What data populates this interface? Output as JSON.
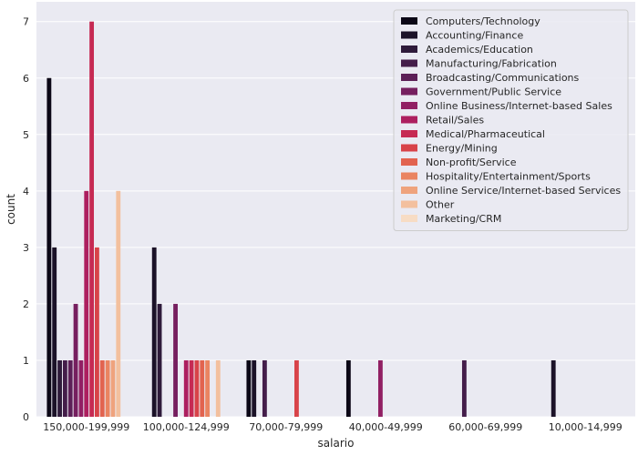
{
  "chart_data": {
    "type": "bar",
    "title": "",
    "xlabel": "salario",
    "ylabel": "count",
    "categories": [
      "150,000-199,999",
      "100,000-124,999",
      "70,000-79,999",
      "40,000-49,999",
      "60,000-69,999",
      "10,000-14,999"
    ],
    "ylim": [
      0,
      7.35
    ],
    "yticks": [
      0,
      1,
      2,
      3,
      4,
      5,
      6,
      7
    ],
    "grid": "horizontal",
    "legend_position": "top-right",
    "series": [
      {
        "name": "Computers/Technology",
        "color": "#0b0716",
        "values": [
          6,
          0,
          1,
          1,
          0,
          0
        ]
      },
      {
        "name": "Accounting/Finance",
        "color": "#1b1228",
        "values": [
          3,
          3,
          1,
          0,
          0,
          1
        ]
      },
      {
        "name": "Academics/Education",
        "color": "#2e1a3a",
        "values": [
          1,
          2,
          0,
          0,
          0,
          0
        ]
      },
      {
        "name": "Manufacturing/Fabrication",
        "color": "#441d4a",
        "values": [
          1,
          0,
          1,
          0,
          1,
          0
        ]
      },
      {
        "name": "Broadcasting/Communications",
        "color": "#5c1f57",
        "values": [
          1,
          0,
          0,
          0,
          0,
          0
        ]
      },
      {
        "name": "Government/Public Service",
        "color": "#761f5f",
        "values": [
          2,
          2,
          0,
          0,
          0,
          0
        ]
      },
      {
        "name": "Online Business/Internet-based Sales",
        "color": "#911f63",
        "values": [
          1,
          0,
          0,
          1,
          0,
          0
        ]
      },
      {
        "name": "Retail/Sales",
        "color": "#ad1f5f",
        "values": [
          4,
          1,
          0,
          0,
          0,
          0
        ]
      },
      {
        "name": "Medical/Pharmaceutical",
        "color": "#c62a53",
        "values": [
          7,
          1,
          0,
          0,
          0,
          0
        ]
      },
      {
        "name": "Energy/Mining",
        "color": "#d84349",
        "values": [
          3,
          1,
          1,
          0,
          0,
          0
        ]
      },
      {
        "name": "Non-profit/Service",
        "color": "#e2634f",
        "values": [
          1,
          1,
          0,
          0,
          0,
          0
        ]
      },
      {
        "name": "Hospitality/Entertainment/Sports",
        "color": "#ea8461",
        "values": [
          1,
          1,
          0,
          0,
          0,
          0
        ]
      },
      {
        "name": "Online Service/Internet-based Services",
        "color": "#efa37d",
        "values": [
          1,
          0,
          0,
          0,
          0,
          0
        ]
      },
      {
        "name": "Other",
        "color": "#f3c09e",
        "values": [
          4,
          1,
          0,
          0,
          0,
          0
        ]
      },
      {
        "name": "Marketing/CRM",
        "color": "#f7dcc4",
        "values": [
          0,
          0,
          0,
          0,
          0,
          0
        ]
      }
    ]
  },
  "colors": {
    "plot_background": "#eaeaf2",
    "grid": "#ffffff",
    "text": "#262626",
    "legend_background": "#eaeaf2",
    "legend_border": "#cccccc"
  }
}
